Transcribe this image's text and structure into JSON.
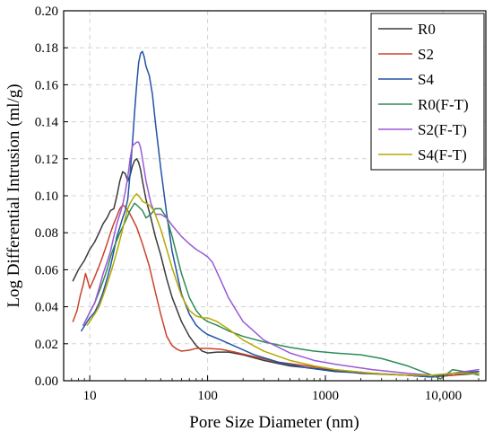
{
  "chart_data": {
    "type": "line",
    "title": "",
    "xlabel": "Pore Size Diameter (nm)",
    "ylabel": "Log Differential Intrusion (ml/g)",
    "x_scale": "log",
    "xlim": [
      6.0,
      23000
    ],
    "ylim": [
      0.0,
      0.2
    ],
    "x_ticks": [
      {
        "value": 10,
        "label": "10"
      },
      {
        "value": 100,
        "label": "100"
      },
      {
        "value": 1000,
        "label": "1000"
      },
      {
        "value": 10000,
        "label": "10,000"
      }
    ],
    "y_ticks": [
      {
        "value": 0.0,
        "label": "0.00"
      },
      {
        "value": 0.02,
        "label": "0.02"
      },
      {
        "value": 0.04,
        "label": "0.04"
      },
      {
        "value": 0.06,
        "label": "0.06"
      },
      {
        "value": 0.08,
        "label": "0.08"
      },
      {
        "value": 0.1,
        "label": "0.10"
      },
      {
        "value": 0.12,
        "label": "0.12"
      },
      {
        "value": 0.14,
        "label": "0.14"
      },
      {
        "value": 0.16,
        "label": "0.16"
      },
      {
        "value": 0.18,
        "label": "0.18"
      },
      {
        "value": 0.2,
        "label": "0.20"
      }
    ],
    "grid": true,
    "legend_position": "top-right",
    "series": [
      {
        "name": "R0",
        "color": "#3a3a3a",
        "points": [
          [
            7.2,
            0.054
          ],
          [
            8,
            0.06
          ],
          [
            9,
            0.065
          ],
          [
            10,
            0.071
          ],
          [
            11,
            0.075
          ],
          [
            12,
            0.08
          ],
          [
            13,
            0.085
          ],
          [
            14,
            0.088
          ],
          [
            15,
            0.092
          ],
          [
            16,
            0.093
          ],
          [
            17,
            0.1
          ],
          [
            18,
            0.108
          ],
          [
            19,
            0.113
          ],
          [
            20,
            0.112
          ],
          [
            21,
            0.108
          ],
          [
            22,
            0.111
          ],
          [
            23,
            0.116
          ],
          [
            24,
            0.119
          ],
          [
            25,
            0.12
          ],
          [
            26,
            0.118
          ],
          [
            27,
            0.114
          ],
          [
            28,
            0.108
          ],
          [
            30,
            0.098
          ],
          [
            33,
            0.088
          ],
          [
            36,
            0.078
          ],
          [
            40,
            0.068
          ],
          [
            45,
            0.055
          ],
          [
            50,
            0.045
          ],
          [
            60,
            0.032
          ],
          [
            70,
            0.024
          ],
          [
            80,
            0.019
          ],
          [
            90,
            0.016
          ],
          [
            100,
            0.015
          ],
          [
            120,
            0.0155
          ],
          [
            150,
            0.0155
          ],
          [
            200,
            0.014
          ],
          [
            300,
            0.011
          ],
          [
            500,
            0.008
          ],
          [
            1000,
            0.006
          ],
          [
            2000,
            0.004
          ],
          [
            5000,
            0.003
          ],
          [
            8000,
            0.002
          ],
          [
            12000,
            0.003
          ],
          [
            20000,
            0.004
          ]
        ]
      },
      {
        "name": "S2",
        "color": "#c8432b",
        "points": [
          [
            7.2,
            0.032
          ],
          [
            7.8,
            0.038
          ],
          [
            8.3,
            0.046
          ],
          [
            8.8,
            0.052
          ],
          [
            9.2,
            0.058
          ],
          [
            9.6,
            0.054
          ],
          [
            10,
            0.05
          ],
          [
            11,
            0.056
          ],
          [
            12,
            0.062
          ],
          [
            13,
            0.068
          ],
          [
            14,
            0.074
          ],
          [
            15,
            0.08
          ],
          [
            16,
            0.085
          ],
          [
            17,
            0.089
          ],
          [
            18,
            0.093
          ],
          [
            19,
            0.095
          ],
          [
            20,
            0.094
          ],
          [
            22,
            0.09
          ],
          [
            25,
            0.083
          ],
          [
            28,
            0.074
          ],
          [
            32,
            0.062
          ],
          [
            36,
            0.048
          ],
          [
            40,
            0.036
          ],
          [
            45,
            0.024
          ],
          [
            50,
            0.019
          ],
          [
            55,
            0.017
          ],
          [
            60,
            0.016
          ],
          [
            70,
            0.0165
          ],
          [
            80,
            0.0175
          ],
          [
            100,
            0.0175
          ],
          [
            130,
            0.017
          ],
          [
            170,
            0.0155
          ],
          [
            250,
            0.013
          ],
          [
            400,
            0.01
          ],
          [
            700,
            0.008
          ],
          [
            1200,
            0.006
          ],
          [
            2500,
            0.004
          ],
          [
            5000,
            0.003
          ],
          [
            8000,
            0.002
          ],
          [
            12000,
            0.003
          ],
          [
            20000,
            0.005
          ]
        ]
      },
      {
        "name": "S4",
        "color": "#2153a6",
        "points": [
          [
            8.5,
            0.027
          ],
          [
            9.3,
            0.031
          ],
          [
            10,
            0.034
          ],
          [
            11,
            0.037
          ],
          [
            12,
            0.042
          ],
          [
            13,
            0.048
          ],
          [
            14,
            0.055
          ],
          [
            15,
            0.062
          ],
          [
            16,
            0.07
          ],
          [
            17,
            0.078
          ],
          [
            18,
            0.083
          ],
          [
            19,
            0.088
          ],
          [
            20,
            0.092
          ],
          [
            21,
            0.098
          ],
          [
            22,
            0.112
          ],
          [
            23,
            0.128
          ],
          [
            24,
            0.145
          ],
          [
            25,
            0.16
          ],
          [
            26,
            0.172
          ],
          [
            27,
            0.177
          ],
          [
            28,
            0.178
          ],
          [
            29,
            0.175
          ],
          [
            30,
            0.17
          ],
          [
            32,
            0.165
          ],
          [
            34,
            0.155
          ],
          [
            36,
            0.14
          ],
          [
            40,
            0.115
          ],
          [
            45,
            0.09
          ],
          [
            50,
            0.07
          ],
          [
            60,
            0.047
          ],
          [
            70,
            0.036
          ],
          [
            80,
            0.03
          ],
          [
            90,
            0.027
          ],
          [
            100,
            0.025
          ],
          [
            130,
            0.022
          ],
          [
            180,
            0.018
          ],
          [
            250,
            0.014
          ],
          [
            400,
            0.01
          ],
          [
            700,
            0.007
          ],
          [
            1200,
            0.005
          ],
          [
            2500,
            0.004
          ],
          [
            5000,
            0.003
          ],
          [
            8000,
            0.002
          ],
          [
            12000,
            0.004
          ],
          [
            20000,
            0.005
          ]
        ]
      },
      {
        "name": "R0(F-T)",
        "color": "#2e8b57",
        "points": [
          [
            8.8,
            0.03
          ],
          [
            10,
            0.037
          ],
          [
            11,
            0.042
          ],
          [
            12,
            0.048
          ],
          [
            13,
            0.054
          ],
          [
            14,
            0.06
          ],
          [
            15,
            0.067
          ],
          [
            16,
            0.072
          ],
          [
            18,
            0.08
          ],
          [
            20,
            0.086
          ],
          [
            22,
            0.092
          ],
          [
            24,
            0.096
          ],
          [
            26,
            0.094
          ],
          [
            28,
            0.092
          ],
          [
            30,
            0.088
          ],
          [
            33,
            0.09
          ],
          [
            36,
            0.093
          ],
          [
            40,
            0.093
          ],
          [
            45,
            0.088
          ],
          [
            50,
            0.078
          ],
          [
            60,
            0.058
          ],
          [
            70,
            0.045
          ],
          [
            80,
            0.038
          ],
          [
            90,
            0.034
          ],
          [
            100,
            0.032
          ],
          [
            120,
            0.03
          ],
          [
            150,
            0.027
          ],
          [
            200,
            0.024
          ],
          [
            300,
            0.021
          ],
          [
            500,
            0.018
          ],
          [
            800,
            0.016
          ],
          [
            1200,
            0.015
          ],
          [
            2000,
            0.014
          ],
          [
            3000,
            0.012
          ],
          [
            5000,
            0.008
          ],
          [
            8000,
            0.003
          ],
          [
            9500,
            0.001
          ],
          [
            12000,
            0.006
          ],
          [
            15000,
            0.005
          ],
          [
            20000,
            0.003
          ]
        ]
      },
      {
        "name": "S2(F-T)",
        "color": "#9b59d6",
        "points": [
          [
            8.8,
            0.03
          ],
          [
            9.5,
            0.034
          ],
          [
            10,
            0.037
          ],
          [
            11,
            0.042
          ],
          [
            12,
            0.05
          ],
          [
            13,
            0.058
          ],
          [
            14,
            0.064
          ],
          [
            15,
            0.07
          ],
          [
            16,
            0.078
          ],
          [
            17,
            0.085
          ],
          [
            18,
            0.09
          ],
          [
            19,
            0.095
          ],
          [
            20,
            0.102
          ],
          [
            21,
            0.11
          ],
          [
            22,
            0.12
          ],
          [
            23,
            0.127
          ],
          [
            24,
            0.128
          ],
          [
            25,
            0.129
          ],
          [
            26,
            0.129
          ],
          [
            27,
            0.126
          ],
          [
            28,
            0.12
          ],
          [
            30,
            0.108
          ],
          [
            33,
            0.096
          ],
          [
            36,
            0.09
          ],
          [
            40,
            0.09
          ],
          [
            45,
            0.088
          ],
          [
            50,
            0.084
          ],
          [
            60,
            0.078
          ],
          [
            70,
            0.074
          ],
          [
            80,
            0.071
          ],
          [
            90,
            0.069
          ],
          [
            100,
            0.067
          ],
          [
            110,
            0.064
          ],
          [
            130,
            0.054
          ],
          [
            150,
            0.045
          ],
          [
            200,
            0.032
          ],
          [
            300,
            0.022
          ],
          [
            500,
            0.015
          ],
          [
            800,
            0.011
          ],
          [
            1200,
            0.009
          ],
          [
            2500,
            0.006
          ],
          [
            5000,
            0.004
          ],
          [
            8000,
            0.003
          ],
          [
            12000,
            0.004
          ],
          [
            20000,
            0.006
          ]
        ]
      },
      {
        "name": "S4(F-T)",
        "color": "#b5a800",
        "points": [
          [
            9.5,
            0.03
          ],
          [
            10,
            0.032
          ],
          [
            11,
            0.036
          ],
          [
            12,
            0.04
          ],
          [
            13,
            0.046
          ],
          [
            14,
            0.052
          ],
          [
            15,
            0.058
          ],
          [
            16,
            0.064
          ],
          [
            17,
            0.07
          ],
          [
            18,
            0.076
          ],
          [
            19,
            0.082
          ],
          [
            20,
            0.088
          ],
          [
            21,
            0.093
          ],
          [
            22,
            0.096
          ],
          [
            23,
            0.098
          ],
          [
            24,
            0.1
          ],
          [
            25,
            0.101
          ],
          [
            26,
            0.1
          ],
          [
            28,
            0.097
          ],
          [
            30,
            0.096
          ],
          [
            32,
            0.095
          ],
          [
            35,
            0.092
          ],
          [
            40,
            0.082
          ],
          [
            45,
            0.071
          ],
          [
            50,
            0.061
          ],
          [
            60,
            0.046
          ],
          [
            70,
            0.038
          ],
          [
            80,
            0.035
          ],
          [
            90,
            0.034
          ],
          [
            100,
            0.034
          ],
          [
            120,
            0.032
          ],
          [
            150,
            0.028
          ],
          [
            200,
            0.022
          ],
          [
            300,
            0.016
          ],
          [
            500,
            0.011
          ],
          [
            800,
            0.008
          ],
          [
            1200,
            0.006
          ],
          [
            2500,
            0.004
          ],
          [
            5000,
            0.003
          ],
          [
            8000,
            0.003
          ],
          [
            12000,
            0.004
          ],
          [
            20000,
            0.004
          ]
        ]
      }
    ]
  }
}
